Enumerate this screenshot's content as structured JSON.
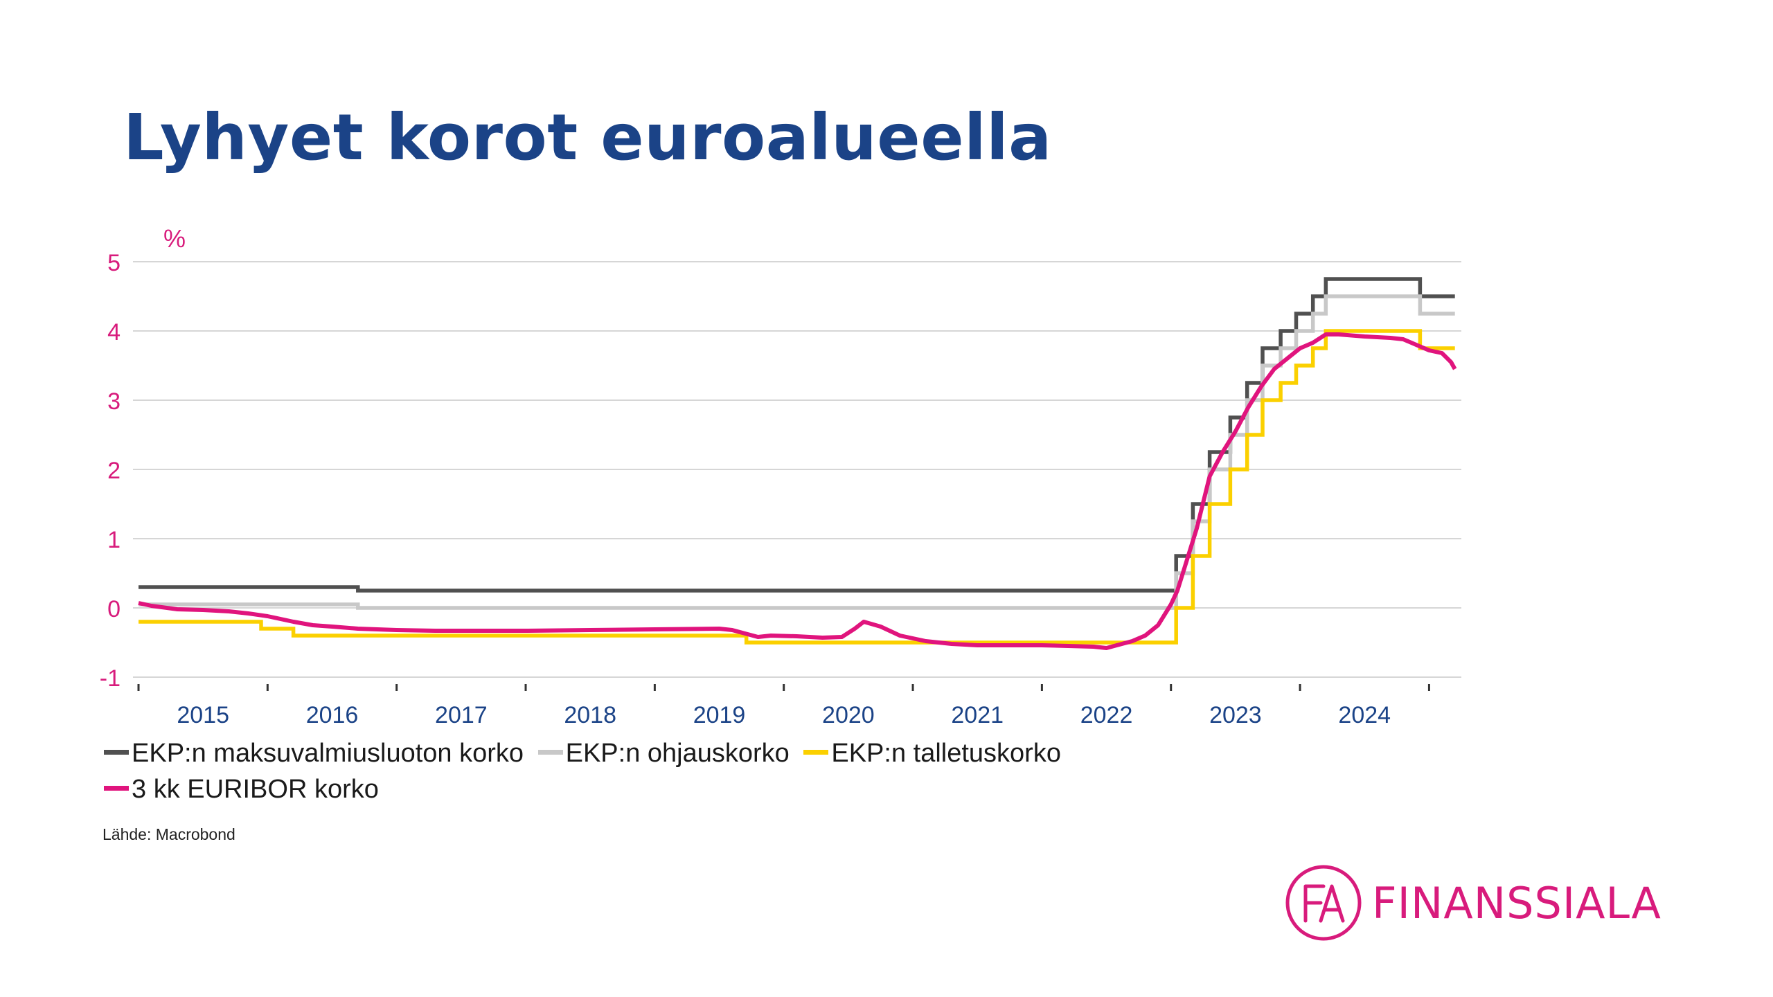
{
  "title": "Lyhyet korot euroalueella",
  "source": "Lähde: Macrobond",
  "logo": {
    "initials": "FA",
    "name": "FINANSSIALA",
    "color": "#d81b7c"
  },
  "chart_data": {
    "type": "line",
    "title": "Lyhyet korot euroalueella",
    "ylabel": "%",
    "xlabel": "",
    "xlim": [
      2014.5,
      2024.75
    ],
    "ylim": [
      -1,
      5
    ],
    "yticks": [
      "-1",
      "0",
      "1",
      "2",
      "3",
      "4",
      "5"
    ],
    "xtick_labels": [
      "2015",
      "2016",
      "2017",
      "2018",
      "2019",
      "2020",
      "2021",
      "2022",
      "2023",
      "2024"
    ],
    "grid": true,
    "legend_position": "bottom",
    "colors": {
      "axis_text": "#d81b7c",
      "year_text": "#1b4387",
      "grid": "#d6d6d6"
    },
    "series": [
      {
        "name": "EKP:n maksuvalmiusluoton korko",
        "color": "#505050",
        "step": true,
        "x": [
          2014.5,
          2015.7,
          2015.7,
          2016.2,
          2016.2,
          2022.54,
          2022.54,
          2022.67,
          2022.67,
          2022.8,
          2022.8,
          2022.96,
          2022.96,
          2023.09,
          2023.09,
          2023.21,
          2023.21,
          2023.35,
          2023.35,
          2023.47,
          2023.47,
          2023.6,
          2023.6,
          2023.7,
          2023.7,
          2024.43,
          2024.43,
          2024.7
        ],
        "y": [
          0.3,
          0.3,
          0.3,
          0.3,
          0.25,
          0.25,
          0.75,
          0.75,
          1.5,
          1.5,
          2.25,
          2.25,
          2.75,
          2.75,
          3.25,
          3.25,
          3.75,
          3.75,
          4.0,
          4.0,
          4.25,
          4.25,
          4.5,
          4.5,
          4.75,
          4.75,
          4.5,
          4.5
        ]
      },
      {
        "name": "EKP:n ohjauskorko",
        "color": "#c8c8c8",
        "step": true,
        "x": [
          2014.5,
          2015.7,
          2015.7,
          2016.2,
          2016.2,
          2022.54,
          2022.54,
          2022.67,
          2022.67,
          2022.8,
          2022.8,
          2022.96,
          2022.96,
          2023.09,
          2023.09,
          2023.21,
          2023.21,
          2023.35,
          2023.35,
          2023.47,
          2023.47,
          2023.6,
          2023.6,
          2023.7,
          2023.7,
          2024.43,
          2024.43,
          2024.7
        ],
        "y": [
          0.05,
          0.05,
          0.05,
          0.05,
          0.0,
          0.0,
          0.5,
          0.5,
          1.25,
          1.25,
          2.0,
          2.0,
          2.5,
          2.5,
          3.0,
          3.0,
          3.5,
          3.5,
          3.75,
          3.75,
          4.0,
          4.0,
          4.25,
          4.25,
          4.5,
          4.5,
          4.25,
          4.25
        ]
      },
      {
        "name": "EKP:n talletuskorko",
        "color": "#fbd000",
        "step": true,
        "x": [
          2014.5,
          2015.45,
          2015.45,
          2015.7,
          2015.7,
          2019.21,
          2019.21,
          2022.54,
          2022.54,
          2022.67,
          2022.67,
          2022.8,
          2022.8,
          2022.96,
          2022.96,
          2023.09,
          2023.09,
          2023.21,
          2023.21,
          2023.35,
          2023.35,
          2023.47,
          2023.47,
          2023.6,
          2023.6,
          2023.7,
          2023.7,
          2024.43,
          2024.43,
          2024.7
        ],
        "y": [
          -0.2,
          -0.2,
          -0.3,
          -0.3,
          -0.4,
          -0.4,
          -0.5,
          -0.5,
          0.0,
          0.0,
          0.75,
          0.75,
          1.5,
          1.5,
          2.0,
          2.0,
          2.5,
          2.5,
          3.0,
          3.0,
          3.25,
          3.25,
          3.5,
          3.5,
          3.75,
          3.75,
          4.0,
          4.0,
          3.75,
          3.75
        ]
      },
      {
        "name": "3 kk EURIBOR korko",
        "color": "#e0147d",
        "step": false,
        "x": [
          2014.5,
          2014.6,
          2014.8,
          2015.0,
          2015.2,
          2015.35,
          2015.5,
          2015.7,
          2015.85,
          2016.0,
          2016.2,
          2016.5,
          2016.8,
          2017.0,
          2017.5,
          2018.0,
          2018.5,
          2019.0,
          2019.1,
          2019.2,
          2019.3,
          2019.4,
          2019.6,
          2019.8,
          2019.95,
          2020.05,
          2020.12,
          2020.25,
          2020.4,
          2020.6,
          2020.8,
          2021.0,
          2021.5,
          2021.9,
          2022.0,
          2022.1,
          2022.2,
          2022.3,
          2022.4,
          2022.45,
          2022.5,
          2022.55,
          2022.6,
          2022.7,
          2022.8,
          2022.9,
          2023.0,
          2023.1,
          2023.2,
          2023.3,
          2023.4,
          2023.5,
          2023.6,
          2023.7,
          2023.8,
          2024.0,
          2024.2,
          2024.3,
          2024.4,
          2024.5,
          2024.6,
          2024.67,
          2024.7
        ],
        "y": [
          0.07,
          0.03,
          -0.02,
          -0.03,
          -0.05,
          -0.08,
          -0.12,
          -0.2,
          -0.25,
          -0.27,
          -0.3,
          -0.32,
          -0.33,
          -0.33,
          -0.33,
          -0.32,
          -0.31,
          -0.3,
          -0.32,
          -0.37,
          -0.42,
          -0.4,
          -0.41,
          -0.43,
          -0.42,
          -0.3,
          -0.2,
          -0.27,
          -0.4,
          -0.48,
          -0.52,
          -0.54,
          -0.54,
          -0.56,
          -0.58,
          -0.53,
          -0.48,
          -0.4,
          -0.25,
          -0.1,
          0.05,
          0.25,
          0.55,
          1.15,
          1.9,
          2.25,
          2.55,
          2.9,
          3.2,
          3.45,
          3.6,
          3.75,
          3.83,
          3.95,
          3.95,
          3.92,
          3.9,
          3.88,
          3.8,
          3.72,
          3.68,
          3.55,
          3.45
        ]
      }
    ]
  }
}
